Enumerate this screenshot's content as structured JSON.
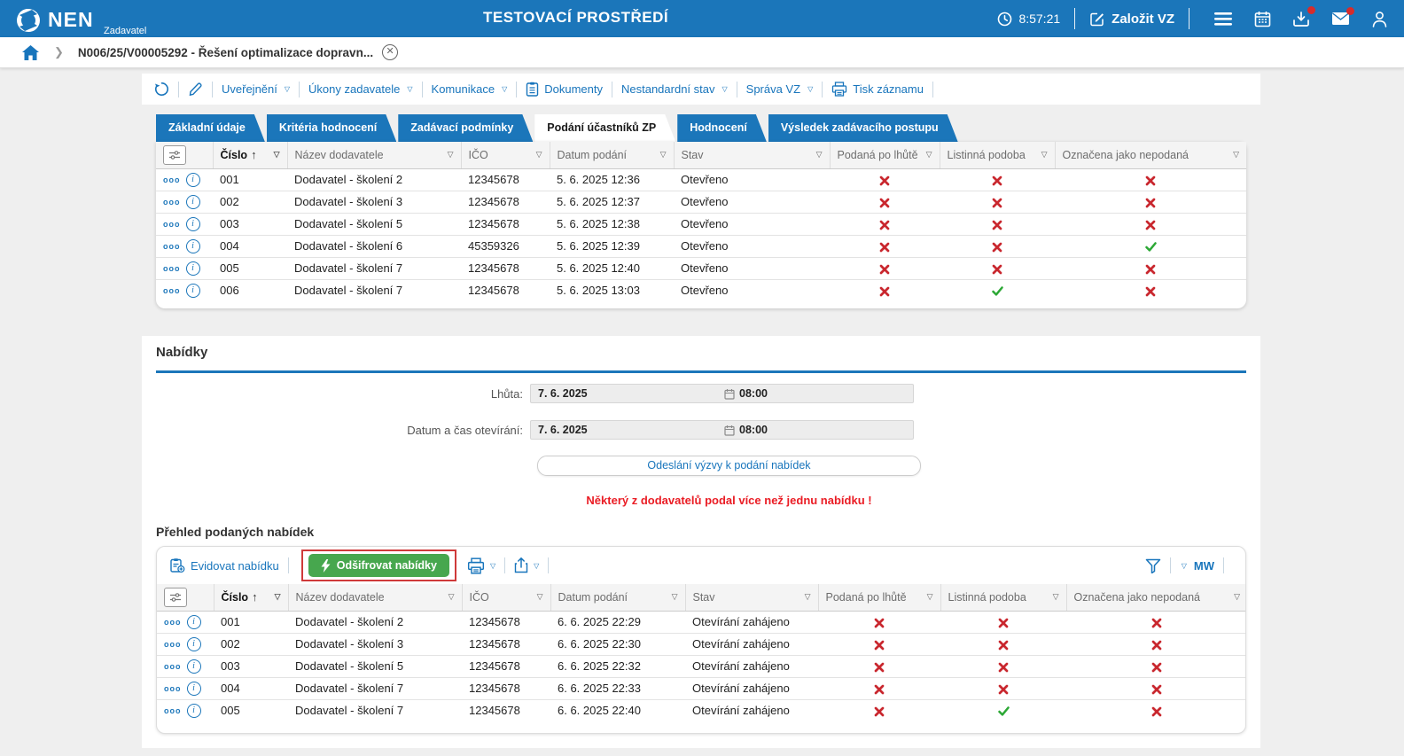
{
  "header": {
    "brand": "NEN",
    "brand_sub": "Zadavatel",
    "env_title": "TESTOVACÍ PROSTŘEDÍ",
    "clock": "8:57:21",
    "create_vz_label": "Založit VZ"
  },
  "breadcrumb": {
    "item": "N006/25/V00005292 - Řešení optimalizace dopravn..."
  },
  "record_toolbar": {
    "uverejneni": "Uveřejnění",
    "ukony_zadavatele": "Úkony zadavatele",
    "komunikace": "Komunikace",
    "dokumenty": "Dokumenty",
    "nestandardni_stav": "Nestandardní stav",
    "sprava_vz": "Správa VZ",
    "tisk_zaznamu": "Tisk záznamu"
  },
  "tabs": {
    "items": [
      "Základní údaje",
      "Kritéria hodnocení",
      "Zadávací podmínky",
      "Podání účastníků ZP",
      "Hodnocení",
      "Výsledek zadávacího postupu"
    ],
    "active": "Podání účastníků ZP"
  },
  "columns": [
    "Číslo",
    "Název dodavatele",
    "IČO",
    "Datum podání",
    "Stav",
    "Podaná po lhůtě",
    "Listinná podoba",
    "Označena jako nepodaná"
  ],
  "participants_table": {
    "rows": [
      {
        "num": "001",
        "supplier": "Dodavatel - školení 2",
        "ico": "12345678",
        "submitted": "5. 6. 2025 12:36",
        "status": "Otevřeno",
        "late": "no",
        "paper": "no",
        "not_submitted": "no"
      },
      {
        "num": "002",
        "supplier": "Dodavatel - školení 3",
        "ico": "12345678",
        "submitted": "5. 6. 2025 12:37",
        "status": "Otevřeno",
        "late": "no",
        "paper": "no",
        "not_submitted": "no"
      },
      {
        "num": "003",
        "supplier": "Dodavatel - školení 5",
        "ico": "12345678",
        "submitted": "5. 6. 2025 12:38",
        "status": "Otevřeno",
        "late": "no",
        "paper": "no",
        "not_submitted": "no"
      },
      {
        "num": "004",
        "supplier": "Dodavatel - školení 6",
        "ico": "45359326",
        "submitted": "5. 6. 2025 12:39",
        "status": "Otevřeno",
        "late": "no",
        "paper": "no",
        "not_submitted": "yes"
      },
      {
        "num": "005",
        "supplier": "Dodavatel - školení 7",
        "ico": "12345678",
        "submitted": "5. 6. 2025 12:40",
        "status": "Otevřeno",
        "late": "no",
        "paper": "no",
        "not_submitted": "no"
      },
      {
        "num": "006",
        "supplier": "Dodavatel - školení 7",
        "ico": "12345678",
        "submitted": "5. 6. 2025 13:03",
        "status": "Otevřeno",
        "late": "no",
        "paper": "yes",
        "not_submitted": "no"
      }
    ]
  },
  "offers_section": {
    "heading": "Nabídky",
    "deadline_label": "Lhůta:",
    "deadline_date": "7. 6. 2025",
    "deadline_time": "08:00",
    "opening_label": "Datum a čas otevírání:",
    "opening_date": "7. 6. 2025",
    "opening_time": "08:00",
    "send_invitation_label": "Odeslání výzvy k podání nabídek",
    "warning": "Některý z dodavatelů podal více než jednu nabídku !",
    "overview_heading": "Přehled podaných nabídek",
    "register_offer_label": "Evidovat nabídku",
    "decrypt_offers_label": "Odšifrovat nabídky",
    "mw_label": "MW"
  },
  "offers_table": {
    "rows": [
      {
        "num": "001",
        "supplier": "Dodavatel - školení 2",
        "ico": "12345678",
        "submitted": "6. 6. 2025 22:29",
        "status": "Otevírání zahájeno",
        "late": "no",
        "paper": "no",
        "not_submitted": "no"
      },
      {
        "num": "002",
        "supplier": "Dodavatel - školení 3",
        "ico": "12345678",
        "submitted": "6. 6. 2025 22:30",
        "status": "Otevírání zahájeno",
        "late": "no",
        "paper": "no",
        "not_submitted": "no"
      },
      {
        "num": "003",
        "supplier": "Dodavatel - školení 5",
        "ico": "12345678",
        "submitted": "6. 6. 2025 22:32",
        "status": "Otevírání zahájeno",
        "late": "no",
        "paper": "no",
        "not_submitted": "no"
      },
      {
        "num": "004",
        "supplier": "Dodavatel - školení 7",
        "ico": "12345678",
        "submitted": "6. 6. 2025 22:33",
        "status": "Otevírání zahájeno",
        "late": "no",
        "paper": "no",
        "not_submitted": "no"
      },
      {
        "num": "005",
        "supplier": "Dodavatel - školení 7",
        "ico": "12345678",
        "submitted": "6. 6. 2025 22:40",
        "status": "Otevírání zahájeno",
        "late": "no",
        "paper": "yes",
        "not_submitted": "no"
      }
    ]
  },
  "colors": {
    "accent_blue": "#1b76ba",
    "link_blue": "#1875bc",
    "success_green": "#2ca835",
    "error_red": "#c9272e",
    "warning_red": "#ea1c24",
    "decrypt_green": "#47a74e"
  }
}
